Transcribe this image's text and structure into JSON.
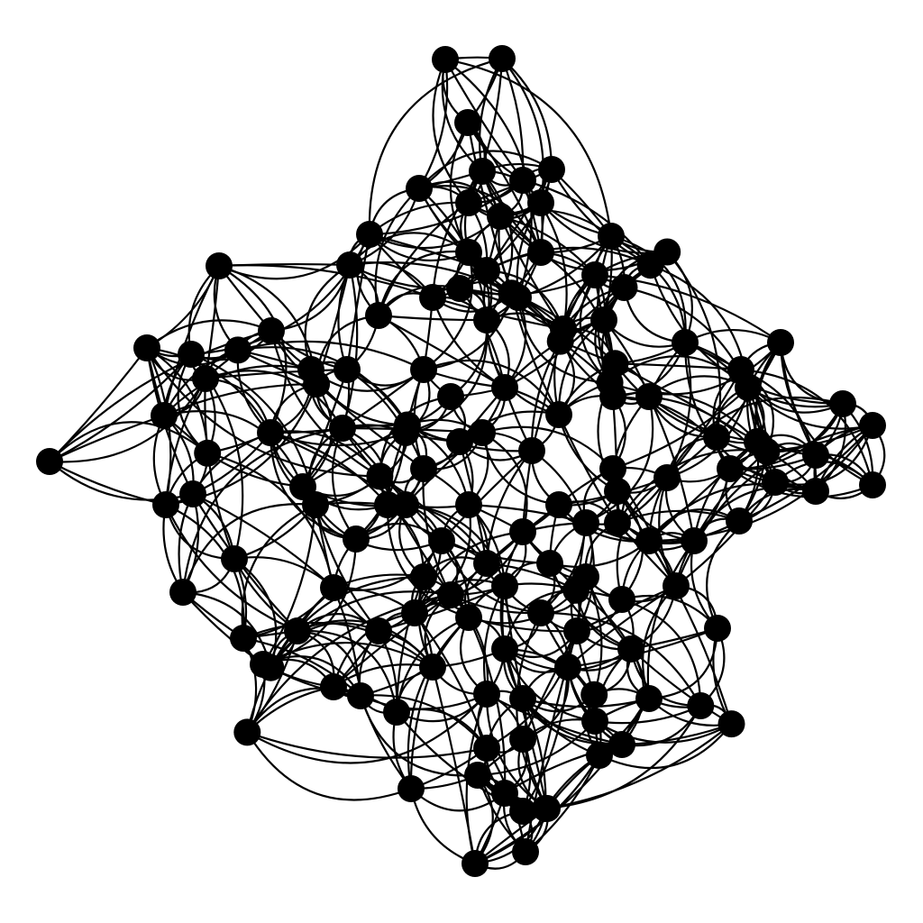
{
  "graph": {
    "node_count": 140,
    "style": "curved-edges",
    "colors": {
      "background": "#ffffff",
      "node": "#000000",
      "edge": "#000000"
    }
  }
}
